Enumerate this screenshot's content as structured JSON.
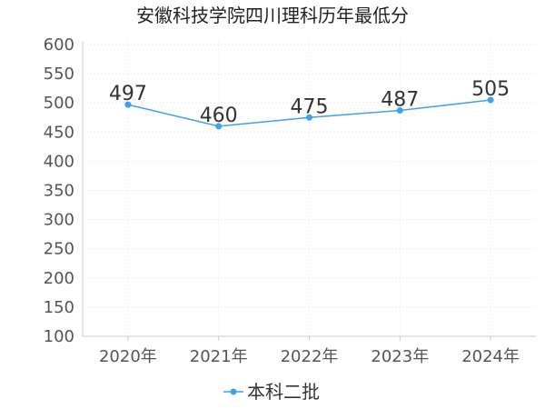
{
  "chart_data": {
    "type": "line",
    "title": "安徽科技学院四川理科历年最低分",
    "categories": [
      "2020年",
      "2021年",
      "2022年",
      "2023年",
      "2024年"
    ],
    "series": [
      {
        "name": "本科二批",
        "values": [
          497,
          460,
          475,
          487,
          505
        ],
        "color": "#3fa0f0"
      }
    ],
    "yticks": [
      100,
      150,
      200,
      250,
      300,
      350,
      400,
      450,
      500,
      550,
      600
    ],
    "ylim": [
      100,
      600
    ],
    "grid": true,
    "legend_position": "bottom"
  }
}
